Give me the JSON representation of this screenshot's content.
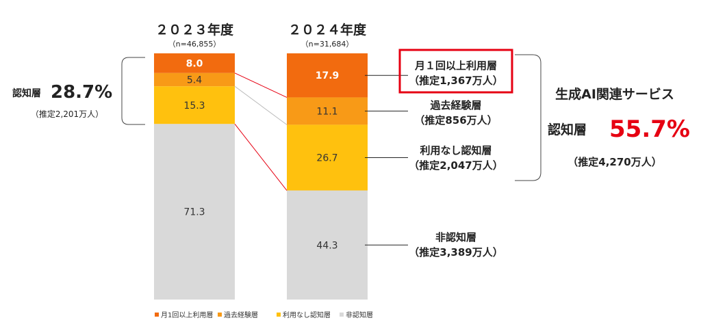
{
  "chart_data": {
    "type": "bar",
    "stacked": true,
    "categories": [
      "２０２３年度",
      "２０２４年度"
    ],
    "sample_sizes": [
      "（n=46,855）",
      "（n=31,684）"
    ],
    "ylim": [
      0,
      100
    ],
    "series": [
      {
        "name": "月1回以上利用層",
        "values": [
          8.0,
          17.9
        ],
        "color": "#F26B0F"
      },
      {
        "name": "過去経験層",
        "values": [
          5.4,
          11.1
        ],
        "color": "#F89A17"
      },
      {
        "name": "利用なし認知層",
        "values": [
          15.3,
          26.7
        ],
        "color": "#FFC10E"
      },
      {
        "name": "非認知層",
        "values": [
          71.3,
          44.3
        ],
        "color": "#D9D9D9"
      }
    ],
    "legend_placement": "bottom",
    "grid": false
  },
  "left_annotation": {
    "label": "認知層",
    "value": "28.7%",
    "estimate": "（推定2,201万人）"
  },
  "right_labels": [
    {
      "line1": "月１回以上利用層",
      "line2": "（推定1,367万人）"
    },
    {
      "line1": "過去経験層",
      "line2": "（推定856万人）"
    },
    {
      "line1": "利用なし認知層",
      "line2": "（推定2,047万人）"
    },
    {
      "line1": "非認知層",
      "line2": "（推定3,389万人）"
    }
  ],
  "summary": {
    "title": "生成AI関連サービス",
    "label": "認知層",
    "value": "55.7%",
    "estimate": "（推定4,270万人）",
    "accent_color": "#E60012"
  }
}
